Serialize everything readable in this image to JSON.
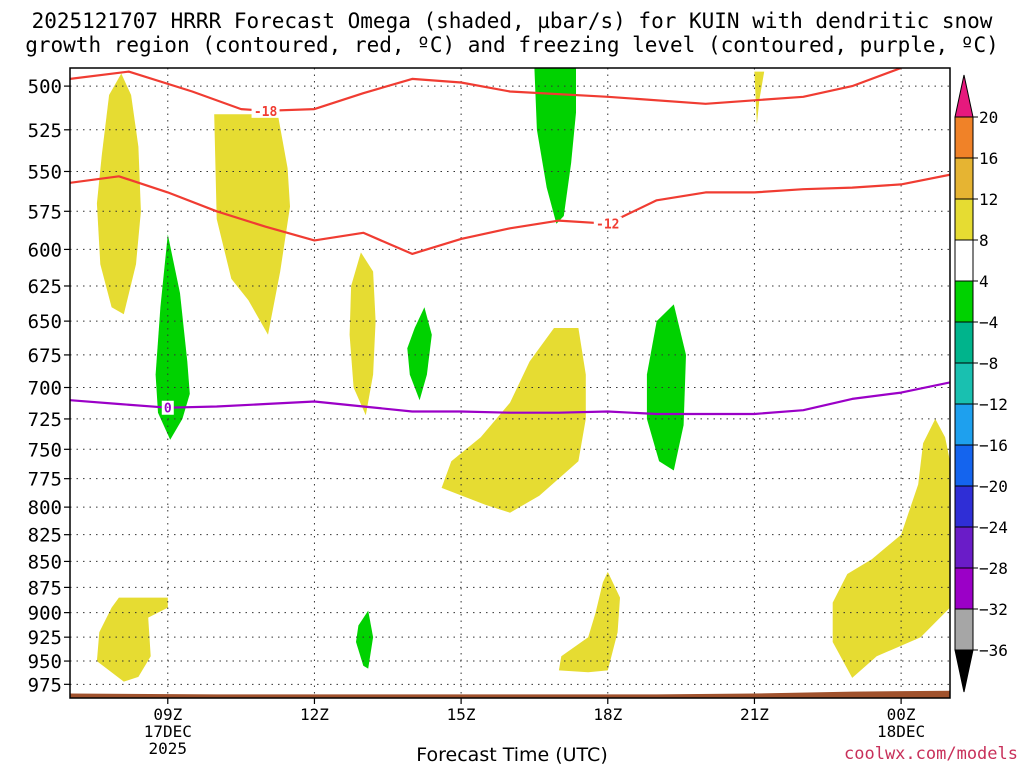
{
  "title": {
    "line1": "2025121707 HRRR Forecast Omega (shaded, µbar/s) for KUIN with dendritic snow",
    "line2": "growth region (contoured, red, ºC) and freezing level (contoured, purple, ºC)"
  },
  "credit": "coolwx.com/models",
  "chart_data": {
    "type": "heatmap",
    "title": "2025121707 HRRR Forecast Omega (shaded, µbar/s) for KUIN with dendritic snow growth region (contoured, red, ºC) and freezing level (contoured, purple, ºC)",
    "xlabel": "Forecast Time (UTC)",
    "ylabel": "",
    "x_unit": "hours after 2025-12-17 00Z",
    "xlim": [
      7,
      25
    ],
    "ylim": [
      990,
      490
    ],
    "y_scale": "log-pressure (hPa)",
    "y_ticks": [
      500,
      525,
      550,
      575,
      600,
      625,
      650,
      675,
      700,
      725,
      750,
      775,
      800,
      825,
      850,
      875,
      900,
      925,
      950,
      975
    ],
    "x_ticks": [
      {
        "x": 9,
        "label": "09Z",
        "sub1": "17DEC",
        "sub2": "2025"
      },
      {
        "x": 12,
        "label": "12Z",
        "sub1": "",
        "sub2": ""
      },
      {
        "x": 15,
        "label": "15Z",
        "sub1": "",
        "sub2": ""
      },
      {
        "x": 18,
        "label": "18Z",
        "sub1": "",
        "sub2": ""
      },
      {
        "x": 21,
        "label": "21Z",
        "sub1": "",
        "sub2": ""
      },
      {
        "x": 24,
        "label": "00Z",
        "sub1": "18DEC",
        "sub2": ""
      }
    ],
    "grid": true,
    "colorbar": {
      "levels": [
        -36,
        -32,
        -28,
        -24,
        -20,
        -16,
        -12,
        -8,
        -4,
        4,
        8,
        12,
        16,
        20
      ],
      "colors": [
        "#a6a6a6",
        "#9b00c7",
        "#6a1cc8",
        "#2f2ed6",
        "#1464ee",
        "#1ea0ee",
        "#19c0b0",
        "#00b48c",
        "#00d200",
        "#ffffff",
        "#e6dc32",
        "#e6b432",
        "#f08228",
        "#f03c32"
      ],
      "under_color": "#000000",
      "over_color": "#e6197d"
    },
    "shaded_regions": [
      {
        "band": "4 to 8",
        "color": "#e6dc32",
        "points": [
          [
            7.55,
            570
          ],
          [
            7.65,
            540
          ],
          [
            7.8,
            505
          ],
          [
            8.05,
            493
          ],
          [
            8.25,
            505
          ],
          [
            8.4,
            535
          ],
          [
            8.45,
            575
          ],
          [
            8.35,
            610
          ],
          [
            8.1,
            645
          ],
          [
            7.85,
            640
          ],
          [
            7.62,
            610
          ]
        ]
      },
      {
        "band": "4 to 8",
        "color": "#e6dc32",
        "points": [
          [
            9.95,
            516
          ],
          [
            11.25,
            516
          ],
          [
            11.45,
            548
          ],
          [
            11.5,
            572
          ],
          [
            11.3,
            615
          ],
          [
            11.05,
            660
          ],
          [
            10.65,
            635
          ],
          [
            10.3,
            620
          ],
          [
            10.0,
            580
          ]
        ]
      },
      {
        "band": "4 to 8",
        "color": "#e6dc32",
        "points": [
          [
            12.75,
            625
          ],
          [
            12.95,
            602
          ],
          [
            13.2,
            615
          ],
          [
            13.25,
            650
          ],
          [
            13.2,
            690
          ],
          [
            13.05,
            722
          ],
          [
            12.8,
            700
          ],
          [
            12.72,
            660
          ]
        ]
      },
      {
        "band": "4 to 8",
        "color": "#e6dc32",
        "points": [
          [
            16.0,
            712
          ],
          [
            16.4,
            680
          ],
          [
            16.9,
            655
          ],
          [
            17.4,
            655
          ],
          [
            17.55,
            690
          ],
          [
            17.55,
            725
          ],
          [
            17.4,
            760
          ],
          [
            16.6,
            790
          ],
          [
            16.0,
            805
          ],
          [
            15.5,
            798
          ],
          [
            14.6,
            783
          ],
          [
            14.8,
            760
          ],
          [
            15.4,
            740
          ]
        ]
      },
      {
        "band": "4 to 8",
        "color": "#e6dc32",
        "points": [
          [
            21.0,
            492
          ],
          [
            21.2,
            492
          ],
          [
            21.1,
            508
          ],
          [
            21.05,
            522
          ]
        ]
      },
      {
        "band": "4 to 8",
        "color": "#e6dc32",
        "points": [
          [
            24.7,
            725
          ],
          [
            24.9,
            740
          ],
          [
            25.0,
            760
          ],
          [
            25.0,
            895
          ],
          [
            24.4,
            925
          ],
          [
            23.5,
            945
          ],
          [
            23.0,
            968
          ],
          [
            22.6,
            930
          ],
          [
            22.6,
            890
          ],
          [
            22.9,
            862
          ],
          [
            23.4,
            848
          ],
          [
            24.0,
            825
          ],
          [
            24.35,
            780
          ],
          [
            24.45,
            745
          ]
        ]
      },
      {
        "band": "4 to 8",
        "color": "#e6dc32",
        "points": [
          [
            8.0,
            885
          ],
          [
            9.0,
            885
          ],
          [
            9.0,
            895
          ],
          [
            8.6,
            905
          ],
          [
            8.65,
            945
          ],
          [
            8.4,
            967
          ],
          [
            8.1,
            972
          ],
          [
            7.55,
            950
          ],
          [
            7.6,
            920
          ],
          [
            7.85,
            895
          ]
        ]
      },
      {
        "band": "4 to 8",
        "color": "#e6dc32",
        "points": [
          [
            17.9,
            870
          ],
          [
            18.0,
            860
          ],
          [
            18.25,
            885
          ],
          [
            18.2,
            920
          ],
          [
            18.0,
            960
          ],
          [
            17.6,
            962
          ],
          [
            17.0,
            960
          ],
          [
            17.05,
            945
          ],
          [
            17.6,
            925
          ],
          [
            17.75,
            900
          ]
        ]
      },
      {
        "band": "-8 to -4",
        "color": "#00d200",
        "points": [
          [
            16.5,
            490
          ],
          [
            17.35,
            490
          ],
          [
            17.35,
            515
          ],
          [
            17.25,
            545
          ],
          [
            17.1,
            578
          ],
          [
            16.95,
            583
          ],
          [
            16.75,
            560
          ],
          [
            16.55,
            525
          ]
        ]
      },
      {
        "band": "-8 to -4",
        "color": "#00d200",
        "points": [
          [
            9.0,
            590
          ],
          [
            9.25,
            630
          ],
          [
            9.4,
            680
          ],
          [
            9.45,
            705
          ],
          [
            9.3,
            725
          ],
          [
            9.05,
            742
          ],
          [
            8.8,
            720
          ],
          [
            8.75,
            690
          ],
          [
            8.85,
            640
          ]
        ]
      },
      {
        "band": "-8 to -4",
        "color": "#00d200",
        "points": [
          [
            14.05,
            655
          ],
          [
            14.25,
            640
          ],
          [
            14.4,
            660
          ],
          [
            14.3,
            690
          ],
          [
            14.15,
            710
          ],
          [
            13.95,
            690
          ],
          [
            13.9,
            670
          ]
        ]
      },
      {
        "band": "-8 to -4",
        "color": "#00d200",
        "points": [
          [
            19.0,
            650
          ],
          [
            19.35,
            638
          ],
          [
            19.6,
            675
          ],
          [
            19.55,
            730
          ],
          [
            19.35,
            768
          ],
          [
            19.05,
            760
          ],
          [
            18.8,
            725
          ],
          [
            18.8,
            690
          ]
        ]
      },
      {
        "band": "-8 to -4",
        "color": "#00d200",
        "points": [
          [
            12.9,
            913
          ],
          [
            13.1,
            898
          ],
          [
            13.2,
            925
          ],
          [
            13.1,
            958
          ],
          [
            13.0,
            955
          ],
          [
            12.85,
            930
          ]
        ]
      }
    ],
    "contours": [
      {
        "label": "-18",
        "color": "#f03c32",
        "label_x": 11.0,
        "points": [
          [
            7,
            496
          ],
          [
            8.2,
            492
          ],
          [
            9.5,
            503
          ],
          [
            10.5,
            513
          ],
          [
            11.0,
            514
          ],
          [
            12.0,
            513
          ],
          [
            13.0,
            504
          ],
          [
            14.0,
            496
          ],
          [
            15.0,
            498
          ],
          [
            16.0,
            503
          ],
          [
            18.0,
            506
          ],
          [
            20.0,
            510
          ],
          [
            21.0,
            508
          ],
          [
            22.0,
            506
          ],
          [
            23.0,
            500
          ],
          [
            24.0,
            490
          ]
        ]
      },
      {
        "label": "-12",
        "color": "#f03c32",
        "label_x": 18.0,
        "points": [
          [
            7,
            557
          ],
          [
            8.0,
            553
          ],
          [
            9.0,
            563
          ],
          [
            10.0,
            575
          ],
          [
            11.0,
            585
          ],
          [
            12.0,
            594
          ],
          [
            13.0,
            589
          ],
          [
            14.0,
            603
          ],
          [
            15.0,
            593
          ],
          [
            16.0,
            586
          ],
          [
            17.0,
            581
          ],
          [
            18.0,
            583
          ],
          [
            19.0,
            568
          ],
          [
            20.0,
            563
          ],
          [
            21.0,
            563
          ],
          [
            22.0,
            561
          ],
          [
            23.0,
            560
          ],
          [
            24.0,
            558
          ],
          [
            25.0,
            552
          ]
        ]
      },
      {
        "label": "0",
        "color": "#9b00c7",
        "label_x": 9.0,
        "points": [
          [
            7,
            710
          ],
          [
            8.0,
            713
          ],
          [
            9.0,
            716
          ],
          [
            10.0,
            715
          ],
          [
            11.0,
            713
          ],
          [
            12.0,
            711
          ],
          [
            13.0,
            715
          ],
          [
            14.0,
            719
          ],
          [
            15.0,
            719
          ],
          [
            16.0,
            720
          ],
          [
            17.0,
            720
          ],
          [
            18.0,
            719
          ],
          [
            19.0,
            721
          ],
          [
            20.0,
            721
          ],
          [
            21.0,
            721
          ],
          [
            22.0,
            718
          ],
          [
            23.0,
            709
          ],
          [
            24.0,
            704
          ],
          [
            25.0,
            696
          ]
        ]
      }
    ],
    "terrain": {
      "color": "#a0522d",
      "points": [
        [
          7,
          985
        ],
        [
          10,
          986
        ],
        [
          13,
          986
        ],
        [
          16,
          986
        ],
        [
          19,
          986
        ],
        [
          21,
          985
        ],
        [
          23,
          983
        ],
        [
          25,
          982
        ]
      ]
    }
  }
}
